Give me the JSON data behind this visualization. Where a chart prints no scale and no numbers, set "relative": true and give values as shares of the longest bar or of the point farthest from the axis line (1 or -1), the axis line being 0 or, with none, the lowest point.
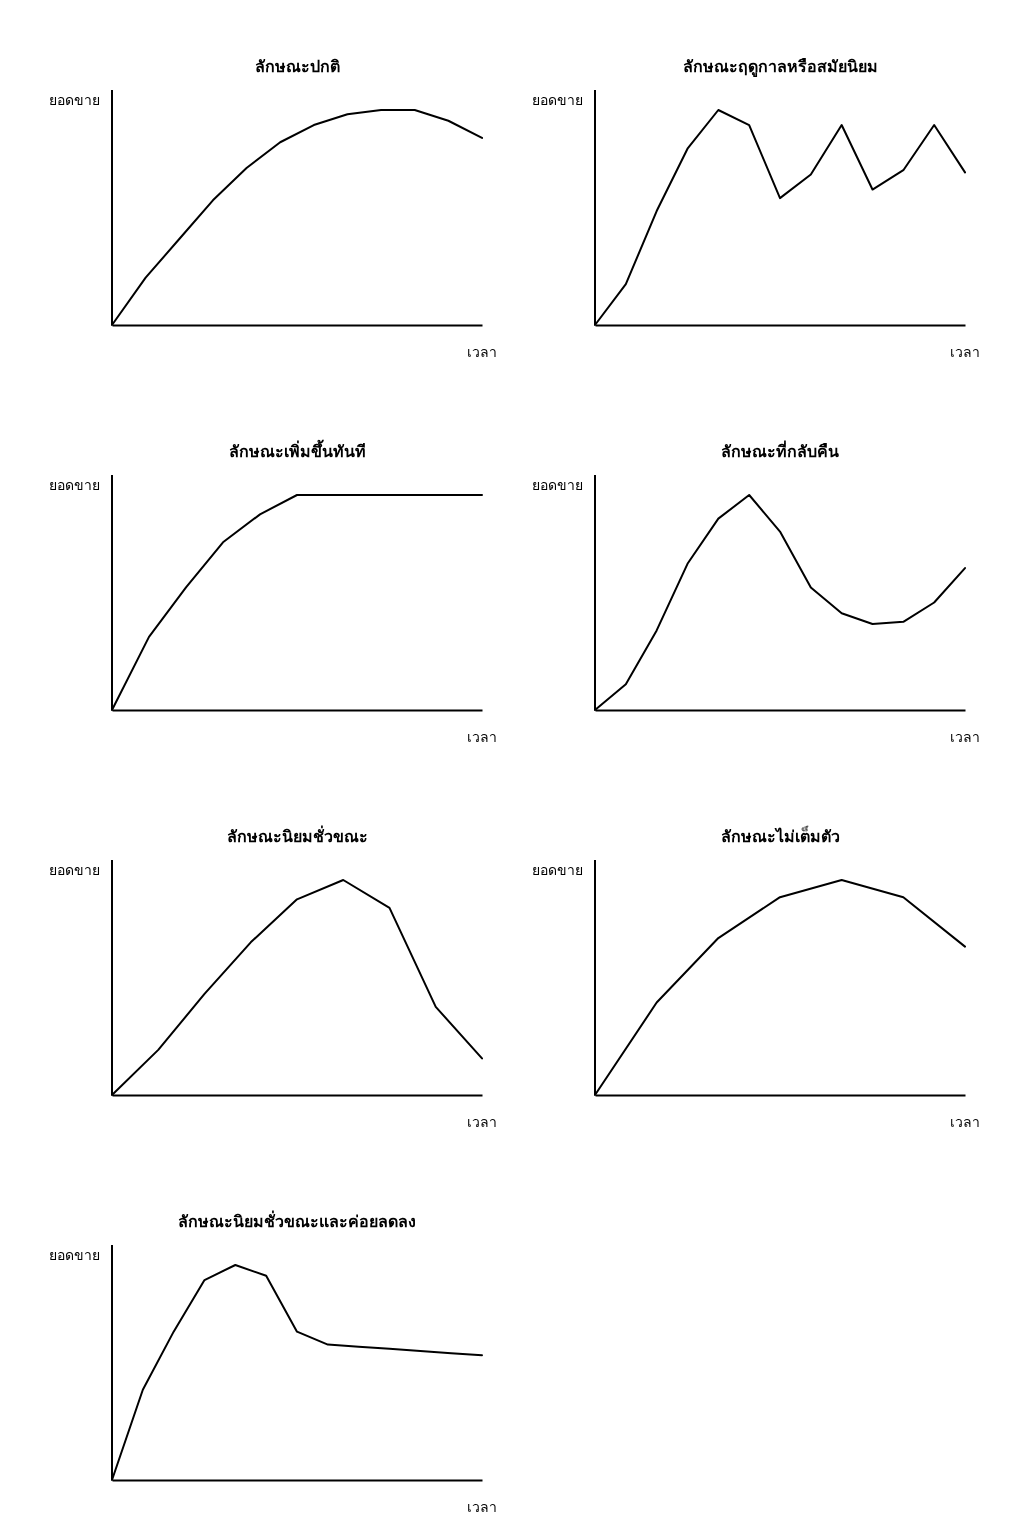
{
  "chart_data": [
    {
      "type": "line",
      "title": "ลักษณะปกติ",
      "xlabel": "เวลา",
      "ylabel": "ยอดขาย",
      "relative": true,
      "categories": [
        null,
        null,
        null,
        null,
        null,
        null,
        null,
        null,
        null,
        null,
        null,
        null
      ],
      "color": "#000000",
      "values": [
        0,
        0.22,
        0.4,
        0.58,
        0.73,
        0.85,
        0.93,
        0.98,
        1,
        1,
        0.95,
        0.87
      ]
    },
    {
      "type": "line",
      "title": "ลักษณะฤดูกาลหรือสมัยนิยม",
      "xlabel": "เวลา",
      "ylabel": "ยอดขาย",
      "relative": true,
      "categories": [
        null,
        null,
        null,
        null,
        null,
        null,
        null,
        null,
        null,
        null,
        null,
        null,
        null
      ],
      "color": "#000000",
      "values": [
        0,
        0.19,
        0.53,
        0.82,
        1,
        0.93,
        0.59,
        0.7,
        0.93,
        0.63,
        0.72,
        0.93,
        0.71
      ]
    },
    {
      "type": "line",
      "title": "ลักษณะเพิ่มขึ้นทันที",
      "xlabel": "เวลา",
      "ylabel": "ยอดขาย",
      "relative": true,
      "categories": [
        null,
        null,
        null,
        null,
        null,
        null,
        null,
        null,
        null,
        null,
        null
      ],
      "color": "#000000",
      "values": [
        0,
        0.34,
        0.57,
        0.78,
        0.91,
        1,
        1,
        1,
        1,
        1,
        1
      ]
    },
    {
      "type": "line",
      "title": "ลักษณะที่กลับคืน",
      "xlabel": "เวลา",
      "ylabel": "ยอดขาย",
      "relative": true,
      "categories": [
        null,
        null,
        null,
        null,
        null,
        null,
        null,
        null,
        null,
        null,
        null,
        null,
        null
      ],
      "color": "#000000",
      "values": [
        0,
        0.12,
        0.37,
        0.68,
        0.89,
        1,
        0.83,
        0.57,
        0.45,
        0.4,
        0.41,
        0.5,
        0.66
      ]
    },
    {
      "type": "line",
      "title": "ลักษณะนิยมชั่วขณะ",
      "xlabel": "เวลา",
      "ylabel": "ยอดขาย",
      "relative": true,
      "categories": [
        null,
        null,
        null,
        null,
        null,
        null,
        null,
        null,
        null
      ],
      "color": "#000000",
      "values": [
        0,
        0.21,
        0.47,
        0.71,
        0.91,
        1,
        0.87,
        0.41,
        0.17
      ]
    },
    {
      "type": "line",
      "title": "ลักษณะไม่เต็มตัว",
      "xlabel": "เวลา",
      "ylabel": "ยอดขาย",
      "relative": true,
      "categories": [
        null,
        null,
        null,
        null,
        null,
        null,
        null
      ],
      "color": "#000000",
      "values": [
        0,
        0.43,
        0.73,
        0.92,
        1,
        0.92,
        0.69
      ]
    },
    {
      "type": "line",
      "title": "ลักษณะนิยมชั่วขณะและค่อยลดลง",
      "xlabel": "เวลา",
      "ylabel": "ยอดขาย",
      "relative": true,
      "categories": [
        null,
        null,
        null,
        null,
        null,
        null,
        null,
        null,
        null,
        null,
        null,
        null,
        null
      ],
      "color": "#000000",
      "values": [
        0,
        0.42,
        0.69,
        0.93,
        1,
        0.95,
        0.69,
        0.63,
        0.62,
        0.61,
        0.6,
        0.59,
        0.58
      ]
    }
  ]
}
